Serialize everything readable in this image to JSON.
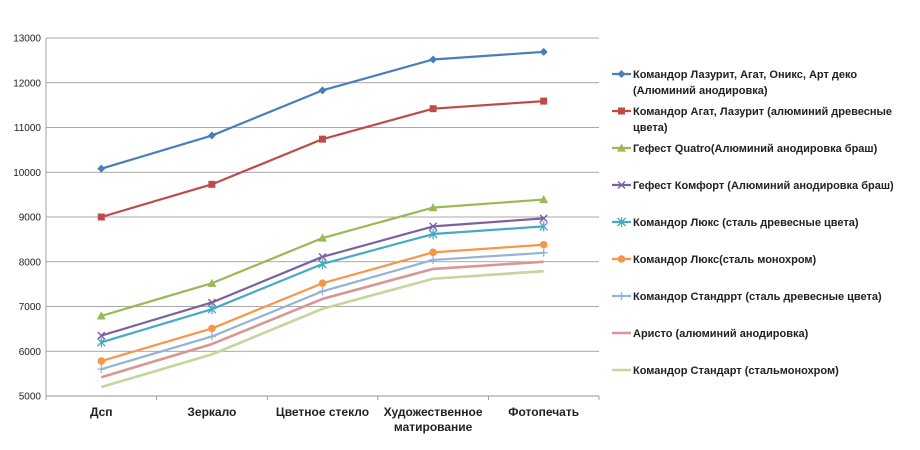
{
  "chart_data": {
    "type": "line",
    "title": "",
    "xlabel": "",
    "ylabel": "",
    "ylim": [
      5000,
      13000
    ],
    "y_ticks": [
      5000,
      6000,
      7000,
      8000,
      9000,
      10000,
      11000,
      12000,
      13000
    ],
    "grid": "horizontal",
    "legend_position": "right",
    "categories": [
      [
        "Дсп"
      ],
      [
        "Зеркало"
      ],
      [
        "Цветное стекло"
      ],
      [
        "Художественное",
        "матирование"
      ],
      [
        "Фотопечать"
      ]
    ],
    "series": [
      {
        "name": [
          "Командор Лазурит, Агат, Оникс, Арт деко",
          "(Алюминий анодировка)"
        ],
        "color": "#4a7ebb",
        "marker": "diamond",
        "values": [
          10080,
          10820,
          11830,
          12520,
          12690
        ]
      },
      {
        "name": [
          "Командор Агат, Лазурит (алюминий древесные",
          "цвета)"
        ],
        "color": "#be4b48",
        "marker": "square",
        "values": [
          9000,
          9730,
          10740,
          11420,
          11590
        ]
      },
      {
        "name": [
          "Гефест Quatro(Алюминий анодировка браш)"
        ],
        "color": "#98b954",
        "marker": "triangle",
        "values": [
          6790,
          7520,
          8530,
          9210,
          9390
        ]
      },
      {
        "name": [
          "Гефест Комфорт (Алюминий анодировка браш)"
        ],
        "color": "#7d60a0",
        "marker": "x",
        "values": [
          6350,
          7090,
          8110,
          8790,
          8970
        ]
      },
      {
        "name": [
          "Командор Люкс (сталь древесные цвета)"
        ],
        "color": "#46aac5",
        "marker": "star",
        "values": [
          6200,
          6940,
          7950,
          8620,
          8790
        ]
      },
      {
        "name": [
          "Командор Люкс(сталь монохром)"
        ],
        "color": "#f79646",
        "marker": "circle",
        "values": [
          5780,
          6510,
          7520,
          8210,
          8380
        ]
      },
      {
        "name": [
          "Командор Стандррт (сталь древесные цвета)"
        ],
        "color": "#95b3d7",
        "marker": "plus",
        "values": [
          5600,
          6330,
          7340,
          8040,
          8200
        ]
      },
      {
        "name": [
          "Аристо (алюминий анодировка)"
        ],
        "color": "#d99694",
        "marker": "none",
        "values": [
          5420,
          6160,
          7170,
          7840,
          8000
        ]
      },
      {
        "name": [
          "Командор Стандарт (стальмонохром)"
        ],
        "color": "#c3d69b",
        "marker": "none",
        "values": [
          5200,
          5930,
          6950,
          7620,
          7790
        ]
      }
    ]
  }
}
